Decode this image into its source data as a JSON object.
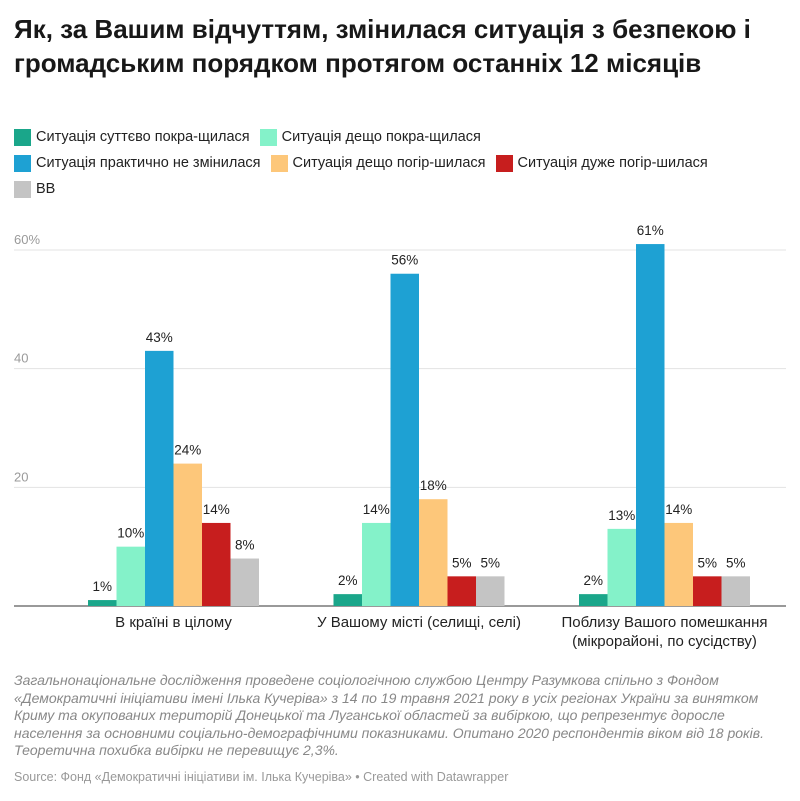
{
  "title": "Як, за Вашим відчуттям, змінилася ситуація з безпекою і громадським порядком протягом останніх 12 місяців",
  "notes": "Загальнонаціональне дослідження проведене соціологічною службою Центру Разумкова спільно з Фондом «Демократичні ініціативи імені Ілька Кучеріва» з 14 по 19 травня 2021 року в усіх регіонах України за винятком Криму та окупованих територій Донецької та Луганської областей за вибіркою, що репрезентує доросле населення за основними соціально-демографічними показниками. Опитано 2020 респондентів віком від 18 років. Теоретична похибка вибірки не перевищує 2,3%.",
  "source": "Source: Фонд «Демократичні ініціативи ім. Ілька Кучеріва» • Created with Datawrapper",
  "chart_data": {
    "type": "bar",
    "categories": [
      "В країні в цілому",
      "У Вашому місті (селищі, селі)",
      "Поблизу Вашого помешкання (мікрорайоні, по сусідству)"
    ],
    "category_lines": [
      [
        "В країні в цілому"
      ],
      [
        "У Вашому місті (селищі, селі)"
      ],
      [
        "Поблизу Вашого помешкання",
        "(мікрорайоні, по сусідству)"
      ]
    ],
    "series": [
      {
        "name": "Ситуація суттєво покра-щилася",
        "color": "#1aa68a",
        "values": [
          1,
          2,
          2
        ],
        "labels": [
          "1%",
          "2%",
          "2%"
        ]
      },
      {
        "name": "Ситуація дещо покра-щилася",
        "color": "#84f2c9",
        "values": [
          10,
          14,
          13
        ],
        "labels": [
          "10%",
          "14%",
          "13%"
        ]
      },
      {
        "name": "Ситуація практично не змінилася",
        "color": "#1ea1d3",
        "values": [
          43,
          56,
          61
        ],
        "labels": [
          "43%",
          "56%",
          "61%"
        ]
      },
      {
        "name": "Ситуація дещо погір-шилася",
        "color": "#fdc77a",
        "values": [
          24,
          18,
          14
        ],
        "labels": [
          "24%",
          "18%",
          "14%"
        ]
      },
      {
        "name": "Ситуація дуже погір-шилася",
        "color": "#c71e1e",
        "values": [
          14,
          5,
          5
        ],
        "labels": [
          "14%",
          "5%",
          "5%"
        ]
      },
      {
        "name": "ВВ",
        "color": "#c4c4c4",
        "values": [
          8,
          5,
          5
        ],
        "labels": [
          "8%",
          "5%",
          "5%"
        ]
      }
    ],
    "legend_rows": [
      [
        0,
        1
      ],
      [
        2,
        3,
        4
      ],
      [
        5
      ]
    ],
    "yticks": [
      20,
      40,
      60
    ],
    "ytick_labels": [
      "20",
      "40",
      "60%"
    ],
    "ylim": [
      0,
      65
    ],
    "xlabel": "",
    "ylabel": "",
    "grid": true,
    "legend_position": "top"
  }
}
